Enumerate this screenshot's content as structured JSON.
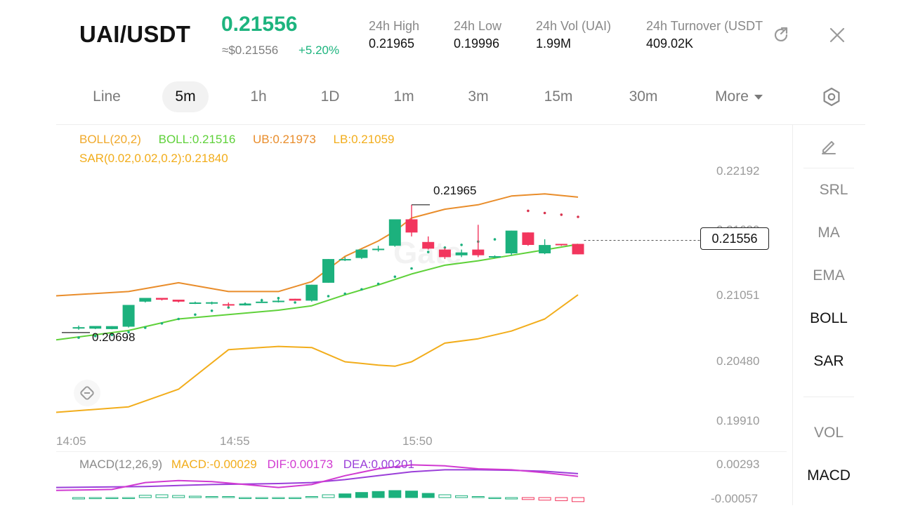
{
  "header": {
    "pair": "UAI/USDT",
    "price": "0.21556",
    "usd_price": "≈$0.21556",
    "change": "+5.20%",
    "stats": [
      {
        "label": "24h  High",
        "value": "0.21965"
      },
      {
        "label": "24h  Low",
        "value": "0.19996"
      },
      {
        "label": "24h  Vol (UAI)",
        "value": "1.99M"
      },
      {
        "label": "24h  Turnover (USDT)",
        "value": "409.02K"
      }
    ]
  },
  "tabs": [
    "Line",
    "5m",
    "1h",
    "1D",
    "1m",
    "3m",
    "15m",
    "30m",
    "More"
  ],
  "active_tab": "5m",
  "indicators": {
    "boll_params": "BOLL(20,2)",
    "boll": "BOLL:0.21516",
    "ub": "UB:0.21973",
    "lb": "LB:0.21059",
    "sar": "SAR(0.02,0.02,0.2):0.21840",
    "macd_params": "MACD(12,26,9)",
    "macd": "MACD:-0.00029",
    "dif": "DIF:0.00173",
    "dea": "DEA:0.00201"
  },
  "chart": {
    "y_labels": [
      "0.22192",
      "0.21620",
      "0.21051",
      "0.20480",
      "0.19910"
    ],
    "x_labels": [
      "14:05",
      "14:55",
      "15:50"
    ],
    "high_annotation": "0.21965",
    "low_annotation": "0.20698",
    "current_price": "0.21556",
    "macd_y_labels": [
      "0.00293",
      "-0.00057"
    ],
    "watermark": "Gate",
    "candles": [
      {
        "o": 0.20765,
        "h": 0.2078,
        "l": 0.20742,
        "c": 0.20765
      },
      {
        "o": 0.20752,
        "h": 0.20776,
        "l": 0.20748,
        "c": 0.20776
      },
      {
        "o": 0.20748,
        "h": 0.20775,
        "l": 0.20746,
        "c": 0.20775
      },
      {
        "o": 0.2077,
        "h": 0.20968,
        "l": 0.20762,
        "c": 0.20968
      },
      {
        "o": 0.20998,
        "h": 0.21032,
        "l": 0.2099,
        "c": 0.21032
      },
      {
        "o": 0.21032,
        "h": 0.21032,
        "l": 0.21008,
        "c": 0.21016
      },
      {
        "o": 0.21016,
        "h": 0.21016,
        "l": 0.2099,
        "c": 0.20998
      },
      {
        "o": 0.20981,
        "h": 0.20998,
        "l": 0.20976,
        "c": 0.2099
      },
      {
        "o": 0.20985,
        "h": 0.20998,
        "l": 0.20972,
        "c": 0.20992
      },
      {
        "o": 0.20975,
        "h": 0.2099,
        "l": 0.2095,
        "c": 0.20962
      },
      {
        "o": 0.20964,
        "h": 0.2099,
        "l": 0.20964,
        "c": 0.20981
      },
      {
        "o": 0.20998,
        "h": 0.21024,
        "l": 0.2099,
        "c": 0.20998
      },
      {
        "o": 0.21006,
        "h": 0.21024,
        "l": 0.2099,
        "c": 0.21006
      },
      {
        "o": 0.21024,
        "h": 0.21024,
        "l": 0.21006,
        "c": 0.21007
      },
      {
        "o": 0.21007,
        "h": 0.21152,
        "l": 0.20998,
        "c": 0.21152
      },
      {
        "o": 0.2117,
        "h": 0.21386,
        "l": 0.2117,
        "c": 0.21386
      },
      {
        "o": 0.21386,
        "h": 0.21404,
        "l": 0.21368,
        "c": 0.21386
      },
      {
        "o": 0.21395,
        "h": 0.21472,
        "l": 0.21386,
        "c": 0.21472
      },
      {
        "o": 0.21472,
        "h": 0.21506,
        "l": 0.21454,
        "c": 0.2148
      },
      {
        "o": 0.21507,
        "h": 0.21748,
        "l": 0.21498,
        "c": 0.21748
      },
      {
        "o": 0.21748,
        "h": 0.2188,
        "l": 0.21592,
        "c": 0.21628
      },
      {
        "o": 0.21541,
        "h": 0.21592,
        "l": 0.21472,
        "c": 0.2148
      },
      {
        "o": 0.21472,
        "h": 0.21489,
        "l": 0.21386,
        "c": 0.21403
      },
      {
        "o": 0.2142,
        "h": 0.21472,
        "l": 0.21403,
        "c": 0.21446
      },
      {
        "o": 0.21472,
        "h": 0.21698,
        "l": 0.21403,
        "c": 0.2142
      },
      {
        "o": 0.21412,
        "h": 0.2142,
        "l": 0.21394,
        "c": 0.21412
      },
      {
        "o": 0.21438,
        "h": 0.21645,
        "l": 0.2142,
        "c": 0.21645
      },
      {
        "o": 0.21628,
        "h": 0.21628,
        "l": 0.21506,
        "c": 0.21514
      },
      {
        "o": 0.21438,
        "h": 0.21566,
        "l": 0.2143,
        "c": 0.21514
      },
      {
        "o": 0.21524,
        "h": 0.21524,
        "l": 0.21506,
        "c": 0.21514
      },
      {
        "o": 0.21524,
        "h": 0.21524,
        "l": 0.21429,
        "c": 0.21429
      }
    ],
    "boll_ub": [
      [
        0,
        0.21051
      ],
      [
        3,
        0.2109
      ],
      [
        6,
        0.2117
      ],
      [
        9,
        0.2109
      ],
      [
        12,
        0.2109
      ],
      [
        14,
        0.2118
      ],
      [
        16,
        0.2141
      ],
      [
        18,
        0.2155
      ],
      [
        19,
        0.2164
      ],
      [
        20,
        0.2176
      ],
      [
        22,
        0.2184
      ],
      [
        24,
        0.2188
      ],
      [
        26,
        0.2196
      ],
      [
        28,
        0.2198
      ],
      [
        30,
        0.2195
      ]
    ],
    "boll_mid": [
      [
        0,
        0.2065
      ],
      [
        3,
        0.20735
      ],
      [
        6,
        0.2084
      ],
      [
        9,
        0.2088
      ],
      [
        12,
        0.2092
      ],
      [
        14,
        0.2096
      ],
      [
        16,
        0.2106
      ],
      [
        18,
        0.2115
      ],
      [
        20,
        0.2125
      ],
      [
        22,
        0.2133
      ],
      [
        24,
        0.2137
      ],
      [
        26,
        0.2142
      ],
      [
        28,
        0.2147
      ],
      [
        30,
        0.2152
      ]
    ],
    "boll_lb": [
      [
        0,
        0.1999
      ],
      [
        3,
        0.2004
      ],
      [
        6,
        0.202
      ],
      [
        9,
        0.2056
      ],
      [
        12,
        0.2059
      ],
      [
        14,
        0.2058
      ],
      [
        16,
        0.2045
      ],
      [
        18,
        0.2042
      ],
      [
        19,
        0.2041
      ],
      [
        20,
        0.2045
      ],
      [
        22,
        0.2062
      ],
      [
        24,
        0.2066
      ],
      [
        26,
        0.2073
      ],
      [
        28,
        0.2084
      ],
      [
        30,
        0.2106
      ]
    ],
    "sar_points": [
      [
        0,
        0.2067
      ],
      [
        1,
        0.20685
      ],
      [
        2,
        0.20695
      ],
      [
        3,
        0.2072
      ],
      [
        4,
        0.2076
      ],
      [
        5,
        0.208
      ],
      [
        6,
        0.2084
      ],
      [
        7,
        0.2088
      ],
      [
        8,
        0.20915
      ],
      [
        9,
        0.20945
      ],
      [
        10,
        0.20975
      ],
      [
        11,
        0.2101
      ],
      [
        12,
        0.2103
      ],
      [
        13,
        0.2099
      ],
      [
        14,
        0.2102
      ],
      [
        15,
        0.21048
      ],
      [
        16,
        0.2107
      ],
      [
        17,
        0.2111
      ],
      [
        18,
        0.2116
      ],
      [
        19,
        0.21225
      ],
      [
        20,
        0.213
      ],
      [
        21,
        0.2145
      ],
      [
        22,
        0.2149
      ],
      [
        23,
        0.21515
      ],
      [
        24,
        0.21545
      ],
      [
        25,
        0.21565
      ],
      [
        26,
        0.21585
      ],
      [
        27,
        0.21825
      ],
      [
        28,
        0.21805
      ],
      [
        29,
        0.2179
      ],
      [
        30,
        0.2177
      ]
    ],
    "macd_dif": [
      [
        0,
        0.0003
      ],
      [
        2,
        0.0004
      ],
      [
        4,
        0.0011
      ],
      [
        6,
        0.0013
      ],
      [
        8,
        0.0012
      ],
      [
        10,
        0.0009
      ],
      [
        12,
        0.0006
      ],
      [
        14,
        0.0009
      ],
      [
        16,
        0.0018
      ],
      [
        18,
        0.0025
      ],
      [
        20,
        0.0029
      ],
      [
        22,
        0.0028
      ],
      [
        24,
        0.0025
      ],
      [
        26,
        0.0024
      ],
      [
        28,
        0.0021
      ],
      [
        30,
        0.00173
      ]
    ],
    "macd_dea": [
      [
        0,
        0.0006
      ],
      [
        4,
        0.0007
      ],
      [
        8,
        0.0009
      ],
      [
        12,
        0.001
      ],
      [
        14,
        0.0011
      ],
      [
        16,
        0.0014
      ],
      [
        18,
        0.0018
      ],
      [
        20,
        0.0022
      ],
      [
        22,
        0.0024
      ],
      [
        24,
        0.0024
      ],
      [
        26,
        0.00235
      ],
      [
        28,
        0.00225
      ],
      [
        30,
        0.00201
      ]
    ],
    "macd_hist": [
      -0.0001,
      -8e-05,
      -6e-05,
      -5e-05,
      0.0001,
      0.00012,
      9e-05,
      6e-05,
      4e-05,
      2e-05,
      -2e-05,
      -3e-05,
      -4e-05,
      -5e-05,
      4e-05,
      0.00012,
      0.00016,
      0.00022,
      0.00026,
      0.0003,
      0.00028,
      0.00018,
      0.00012,
      8e-05,
      4e-05,
      -6e-05,
      -0.0001,
      -0.00014,
      -0.00018,
      -0.00022,
      -0.00029
    ]
  },
  "sidebar": [
    "SRL",
    "MA",
    "EMA",
    "BOLL",
    "SAR",
    "VOL",
    "MACD"
  ],
  "sidebar_active": [
    "BOLL",
    "SAR",
    "MACD"
  ],
  "colors": {
    "up": "#1cb17d",
    "down": "#f2355d",
    "boll_ub": "#e98d2b",
    "boll_mid": "#5fd13a",
    "boll_lb": "#f2ad1b",
    "sar": "#d9344f",
    "dif": "#d13ad1",
    "dea": "#9b3fd9"
  }
}
